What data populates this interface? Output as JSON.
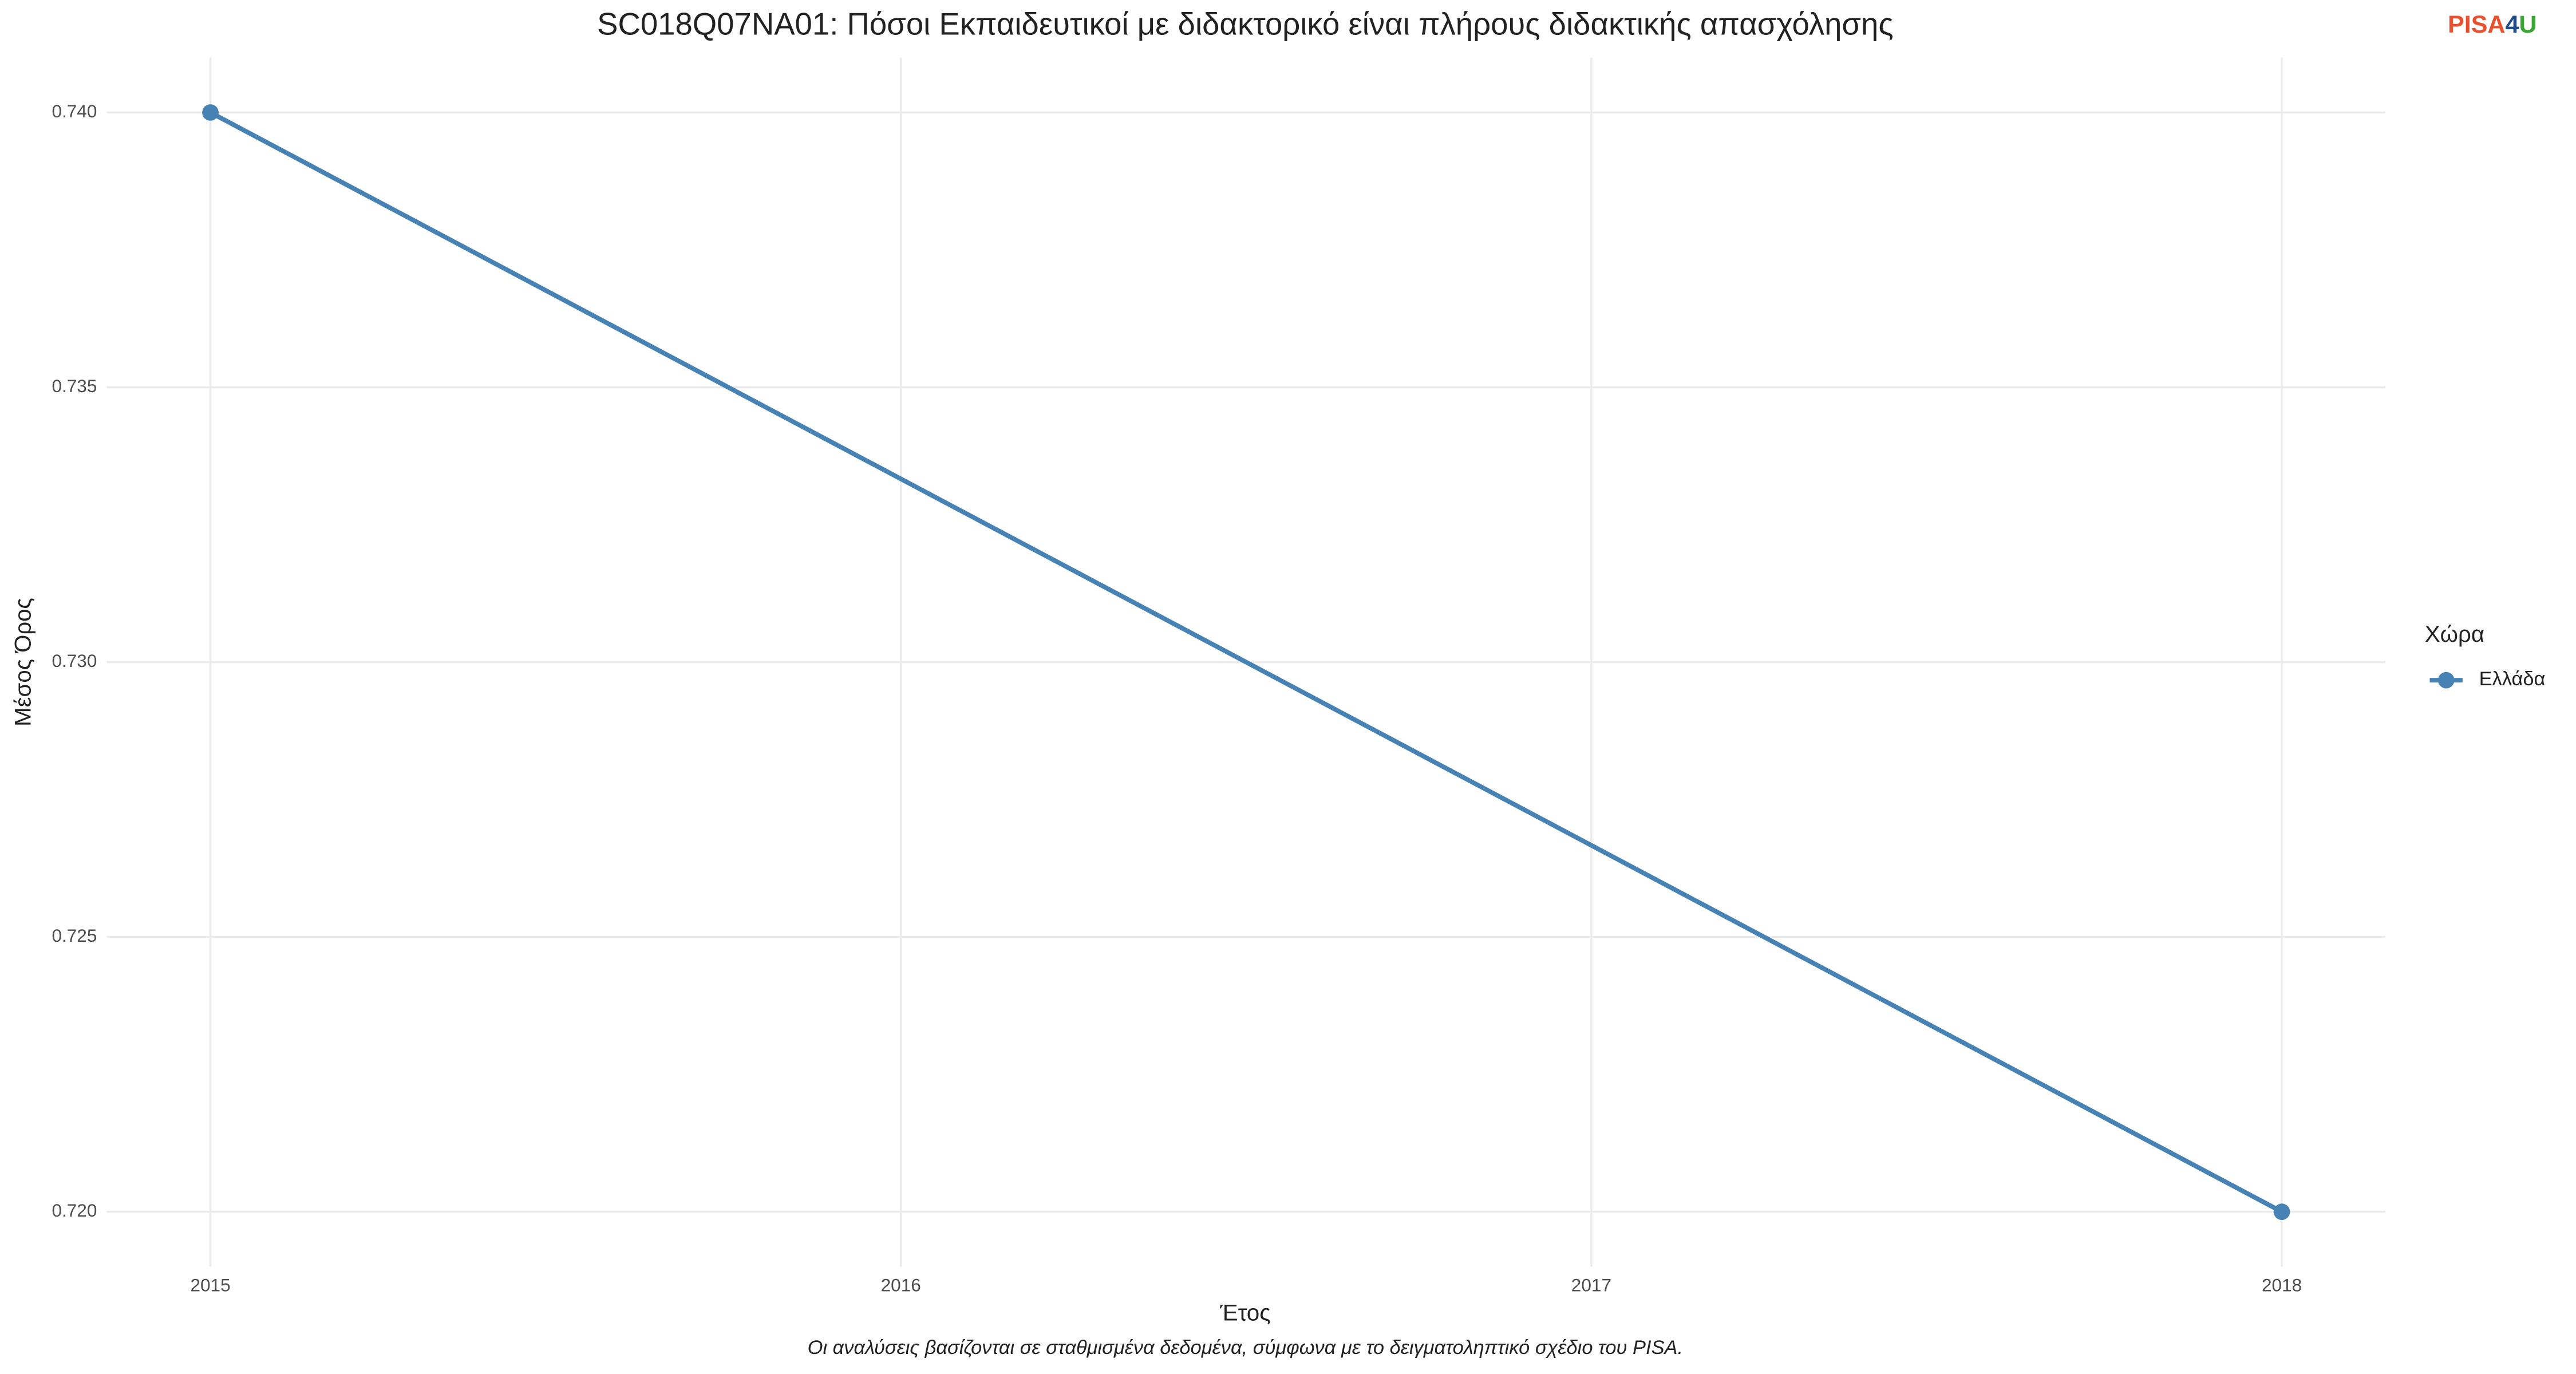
{
  "chart_data": {
    "type": "line",
    "title": "SC018Q07NA01: Πόσοι Εκπαιδευτικοί με διδακτορικό είναι πλήρους διδακτικής απασχόλησης",
    "x_label": "Έτος",
    "y_label": "Μέσος Όρος",
    "caption": "Οι αναλύσεις βασίζονται σε σταθμισμένα δεδομένα, σύμφωνα με το δειγματοληπτικό σχέδιο του PISA.",
    "legend_title": "Χώρα",
    "logo": [
      "PISA",
      "4",
      "U"
    ],
    "x": [
      2015,
      2018
    ],
    "series": [
      {
        "name": "Ελλάδα",
        "color": "#4682b4",
        "values": [
          0.74,
          0.72
        ]
      }
    ],
    "xlim": [
      2014.85,
      2018.15
    ],
    "xticks": [
      2015,
      2016,
      2017,
      2018
    ],
    "ylim": [
      0.719,
      0.741
    ],
    "yticks": [
      {
        "value": 0.72,
        "label": "0.720"
      },
      0.725,
      {
        "value": 0.73,
        "label": "0.730"
      },
      0.735,
      {
        "value": 0.74,
        "label": "0.740"
      }
    ],
    "grid": true,
    "legend": "right"
  }
}
